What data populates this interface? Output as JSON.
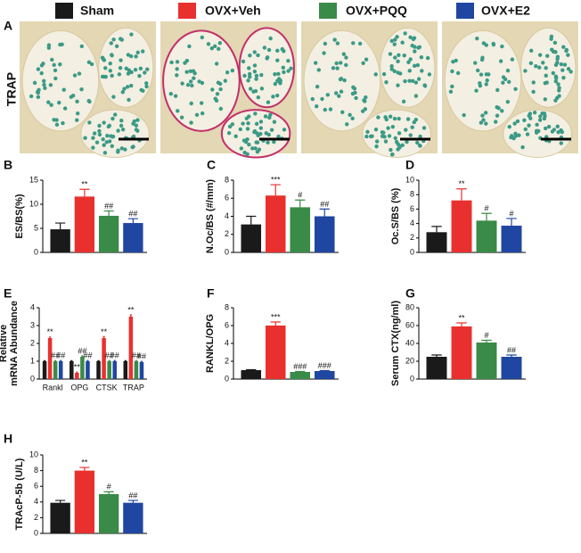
{
  "legend": [
    {
      "name": "Sham",
      "color": "#1a1a1a"
    },
    {
      "name": "OVX+Veh",
      "color": "#e8312e"
    },
    {
      "name": "OVX+PQQ",
      "color": "#3a8a48"
    },
    {
      "name": "OVX+E2",
      "color": "#1f46a0"
    }
  ],
  "panel_a": {
    "label": "A",
    "row_label": "TRAP"
  },
  "chart_data": [
    {
      "type": "bar",
      "panel": "B",
      "ylabel": "ES/BS(%)",
      "categories": [
        null,
        null,
        null,
        null
      ],
      "values": [
        4.8,
        11.6,
        7.6,
        6.1
      ],
      "errors": [
        1.3,
        1.5,
        1.0,
        0.9
      ],
      "annotations": [
        null,
        "**",
        "##",
        "##"
      ],
      "colors": [
        "#1a1a1a",
        "#e8312e",
        "#3a8a48",
        "#1f46a0"
      ],
      "ylim": [
        0,
        15
      ],
      "yticks": [
        0,
        5,
        10,
        15
      ]
    },
    {
      "type": "bar",
      "panel": "C",
      "ylabel": "N.Oc/BS (#/mm)",
      "categories": [
        null,
        null,
        null,
        null
      ],
      "values": [
        3.1,
        6.3,
        5.0,
        4.0
      ],
      "errors": [
        0.9,
        1.2,
        0.8,
        0.8
      ],
      "annotations": [
        null,
        "***",
        "#",
        "##"
      ],
      "colors": [
        "#1a1a1a",
        "#e8312e",
        "#3a8a48",
        "#1f46a0"
      ],
      "ylim": [
        0,
        8
      ],
      "yticks": [
        0,
        2,
        4,
        6,
        8
      ]
    },
    {
      "type": "bar",
      "panel": "D",
      "ylabel": "Oc.S/BS (%)",
      "categories": [
        null,
        null,
        null,
        null
      ],
      "values": [
        2.8,
        7.2,
        4.4,
        3.7
      ],
      "errors": [
        0.8,
        1.6,
        1.0,
        1.0
      ],
      "annotations": [
        null,
        "**",
        "#",
        "#"
      ],
      "colors": [
        "#1a1a1a",
        "#e8312e",
        "#3a8a48",
        "#1f46a0"
      ],
      "ylim": [
        0,
        10
      ],
      "yticks": [
        0,
        2,
        4,
        6,
        8,
        10
      ]
    },
    {
      "type": "grouped_bar",
      "panel": "E",
      "ylabel": [
        "Relative",
        "mRNA Abundance"
      ],
      "categories": [
        "Rankl",
        "OPG",
        "CTSK",
        "TRAP"
      ],
      "series": [
        {
          "name": "Sham",
          "color": "#1a1a1a",
          "values": [
            1,
            1,
            1,
            1
          ],
          "errors": [
            0.03,
            0.03,
            0.03,
            0.03
          ],
          "annotations": [
            null,
            null,
            null,
            null
          ]
        },
        {
          "name": "OVX+Veh",
          "color": "#e8312e",
          "values": [
            2.3,
            0.35,
            2.3,
            3.5
          ],
          "errors": [
            0.06,
            0.04,
            0.08,
            0.1
          ],
          "annotations": [
            "**",
            "**",
            "**",
            "**"
          ]
        },
        {
          "name": "OVX+PQQ",
          "color": "#3a8a48",
          "values": [
            1.0,
            1.25,
            1.0,
            1.0
          ],
          "errors": [
            0.04,
            0.05,
            0.04,
            0.04
          ],
          "annotations": [
            "##",
            "##",
            "##",
            "##"
          ]
        },
        {
          "name": "OVX+E2",
          "color": "#1f46a0",
          "values": [
            1.0,
            1.0,
            1.0,
            0.95
          ],
          "errors": [
            0.04,
            0.04,
            0.04,
            0.04
          ],
          "annotations": [
            "##",
            "##",
            "##",
            "##"
          ]
        }
      ],
      "ylim": [
        0,
        4
      ],
      "yticks": [
        0,
        1,
        2,
        3,
        4
      ]
    },
    {
      "type": "bar",
      "panel": "F",
      "ylabel": "RANKL/OPG",
      "categories": [
        null,
        null,
        null,
        null
      ],
      "values": [
        1.0,
        6.0,
        0.8,
        0.9
      ],
      "errors": [
        0.05,
        0.4,
        0.05,
        0.05
      ],
      "annotations": [
        null,
        "***",
        "###",
        "###"
      ],
      "colors": [
        "#1a1a1a",
        "#e8312e",
        "#3a8a48",
        "#1f46a0"
      ],
      "ylim": [
        0,
        8
      ],
      "yticks": [
        0,
        2,
        4,
        6,
        8
      ]
    },
    {
      "type": "bar",
      "panel": "G",
      "ylabel": "Serum CTX(ng/ml)",
      "categories": [
        null,
        null,
        null,
        null
      ],
      "values": [
        25,
        59,
        41,
        25
      ],
      "errors": [
        2,
        4,
        2.5,
        2
      ],
      "annotations": [
        null,
        "**",
        "#",
        "##"
      ],
      "colors": [
        "#1a1a1a",
        "#e8312e",
        "#3a8a48",
        "#1f46a0"
      ],
      "ylim": [
        0,
        80
      ],
      "yticks": [
        0,
        20,
        40,
        60,
        80
      ]
    },
    {
      "type": "bar",
      "panel": "H",
      "ylabel": "TRAcP-5b (U/L)",
      "categories": [
        null,
        null,
        null,
        null
      ],
      "values": [
        3.9,
        8.0,
        5.0,
        3.9
      ],
      "errors": [
        0.3,
        0.4,
        0.3,
        0.3
      ],
      "annotations": [
        null,
        "**",
        "#",
        "##"
      ],
      "colors": [
        "#1a1a1a",
        "#e8312e",
        "#3a8a48",
        "#1f46a0"
      ],
      "ylim": [
        0,
        10
      ],
      "yticks": [
        0,
        2,
        4,
        6,
        8,
        10
      ]
    }
  ]
}
